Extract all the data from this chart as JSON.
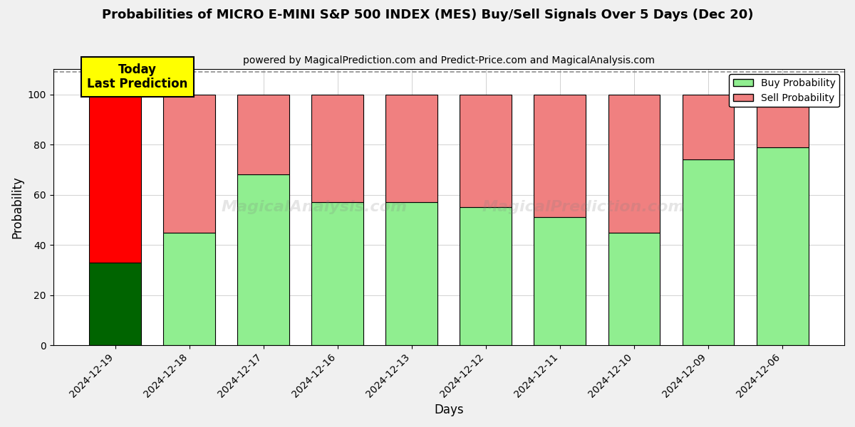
{
  "title": "Probabilities of MICRO E-MINI S&P 500 INDEX (MES) Buy/Sell Signals Over 5 Days (Dec 20)",
  "subtitle": "powered by MagicalPrediction.com and Predict-Price.com and MagicalAnalysis.com",
  "xlabel": "Days",
  "ylabel": "Probability",
  "dates": [
    "2024-12-19",
    "2024-12-18",
    "2024-12-17",
    "2024-12-16",
    "2024-12-13",
    "2024-12-12",
    "2024-12-11",
    "2024-12-10",
    "2024-12-09",
    "2024-12-06"
  ],
  "buy_values": [
    33,
    45,
    68,
    57,
    57,
    55,
    51,
    45,
    74,
    79
  ],
  "sell_values": [
    67,
    55,
    32,
    43,
    43,
    45,
    49,
    55,
    26,
    21
  ],
  "today_buy_color": "#006400",
  "today_sell_color": "#FF0000",
  "other_buy_color": "#90EE90",
  "other_sell_color": "#F08080",
  "bar_edge_color": "black",
  "annotation_text": "Today\nLast Prediction",
  "annotation_bg": "#FFFF00",
  "ylim": [
    0,
    110
  ],
  "dashed_line_y": 109,
  "figsize": [
    12.0,
    6.0
  ],
  "dpi": 100,
  "bg_color": "#f0f0f0",
  "plot_bg_color": "#ffffff",
  "legend_label_buy": "Buy Probability",
  "legend_label_sell": "Sell Probability"
}
